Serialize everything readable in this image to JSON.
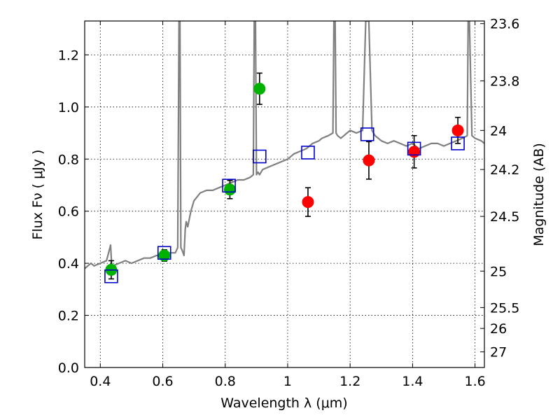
{
  "chart_data": {
    "type": "scatter",
    "title": "",
    "xlabel": "Wavelength  λ (μm)",
    "ylabel": "Flux  Fν  ( μJy )",
    "ylabel2": "Magnitude (AB)",
    "xlim": [
      0.35,
      1.63
    ],
    "ylim": [
      0.0,
      1.33
    ],
    "grid": true,
    "x_ticks": [
      0.4,
      0.6,
      0.8,
      1.0,
      1.2,
      1.4,
      1.6
    ],
    "x_tick_labels": [
      "0.4",
      "0.6",
      "0.8",
      "1",
      "1.2",
      "1.4",
      "1.6"
    ],
    "y_ticks": [
      0.0,
      0.2,
      0.4,
      0.6,
      0.8,
      1.0,
      1.2
    ],
    "y_tick_labels": [
      "0.0",
      "0.2",
      "0.4",
      "0.6",
      "0.8",
      "1.0",
      "1.2"
    ],
    "y2_ticks": [
      {
        "label": "23.6",
        "flux": 1.32
      },
      {
        "label": "23.8",
        "flux": 1.1
      },
      {
        "label": "24",
        "flux": 0.91
      },
      {
        "label": "24.2",
        "flux": 0.76
      },
      {
        "label": "24.5",
        "flux": 0.58
      },
      {
        "label": "25",
        "flux": 0.37
      },
      {
        "label": "25.5",
        "flux": 0.23
      },
      {
        "label": "26",
        "flux": 0.15
      },
      {
        "label": "27",
        "flux": 0.06
      }
    ],
    "colors": {
      "green": "#00b200",
      "red": "#ff0000",
      "blue": "#0000cc",
      "spectrum": "#808080"
    },
    "series": [
      {
        "name": "green points",
        "marker": "circle",
        "color": "#00b200",
        "points": [
          {
            "x": 0.435,
            "y": 0.375,
            "err": 0.035
          },
          {
            "x": 0.605,
            "y": 0.43,
            "err": 0.022
          },
          {
            "x": 0.815,
            "y": 0.683,
            "err": 0.035
          },
          {
            "x": 0.91,
            "y": 1.07,
            "err": 0.06
          }
        ]
      },
      {
        "name": "red points",
        "marker": "circle",
        "color": "#ff0000",
        "points": [
          {
            "x": 1.065,
            "y": 0.635,
            "err": 0.055
          },
          {
            "x": 1.26,
            "y": 0.795,
            "err": 0.072
          },
          {
            "x": 1.405,
            "y": 0.828,
            "err": 0.062
          },
          {
            "x": 1.545,
            "y": 0.91,
            "err": 0.05
          }
        ]
      },
      {
        "name": "model photometry",
        "marker": "square",
        "color": "#0000cc",
        "points": [
          {
            "x": 0.435,
            "y": 0.35
          },
          {
            "x": 0.605,
            "y": 0.44
          },
          {
            "x": 0.812,
            "y": 0.698
          },
          {
            "x": 0.91,
            "y": 0.81
          },
          {
            "x": 1.065,
            "y": 0.825
          },
          {
            "x": 1.255,
            "y": 0.895
          },
          {
            "x": 1.405,
            "y": 0.84
          },
          {
            "x": 1.545,
            "y": 0.86
          }
        ]
      }
    ],
    "spectrum": {
      "name": "model spectrum",
      "color": "#808080",
      "x": [
        0.35,
        0.36,
        0.37,
        0.38,
        0.4,
        0.42,
        0.433,
        0.436,
        0.44,
        0.46,
        0.48,
        0.5,
        0.52,
        0.54,
        0.56,
        0.58,
        0.6,
        0.62,
        0.64,
        0.648,
        0.652,
        0.655,
        0.658,
        0.662,
        0.665,
        0.668,
        0.672,
        0.675,
        0.68,
        0.69,
        0.7,
        0.72,
        0.74,
        0.76,
        0.78,
        0.8,
        0.82,
        0.84,
        0.86,
        0.88,
        0.89,
        0.893,
        0.897,
        0.9,
        0.905,
        0.91,
        0.92,
        0.94,
        0.96,
        0.98,
        1.0,
        1.02,
        1.04,
        1.06,
        1.08,
        1.1,
        1.11,
        1.13,
        1.145,
        1.148,
        1.152,
        1.155,
        1.16,
        1.17,
        1.18,
        1.19,
        1.2,
        1.22,
        1.24,
        1.25,
        1.26,
        1.27,
        1.28,
        1.29,
        1.3,
        1.32,
        1.34,
        1.36,
        1.38,
        1.4,
        1.42,
        1.44,
        1.46,
        1.48,
        1.5,
        1.52,
        1.54,
        1.56,
        1.575,
        1.578,
        1.582,
        1.59,
        1.6,
        1.62,
        1.63
      ],
      "y": [
        0.38,
        0.39,
        0.4,
        0.39,
        0.4,
        0.41,
        0.47,
        0.4,
        0.39,
        0.4,
        0.41,
        0.4,
        0.41,
        0.42,
        0.42,
        0.43,
        0.43,
        0.44,
        0.44,
        0.46,
        1.33,
        1.33,
        0.46,
        0.45,
        0.44,
        0.43,
        0.53,
        0.56,
        0.54,
        0.6,
        0.64,
        0.67,
        0.68,
        0.68,
        0.69,
        0.7,
        0.71,
        0.72,
        0.72,
        0.73,
        0.74,
        1.33,
        1.33,
        0.74,
        0.75,
        0.74,
        0.76,
        0.77,
        0.78,
        0.79,
        0.8,
        0.82,
        0.83,
        0.84,
        0.86,
        0.87,
        0.88,
        0.89,
        0.9,
        1.33,
        1.33,
        0.9,
        0.89,
        0.88,
        0.89,
        0.9,
        0.91,
        0.9,
        0.91,
        1.33,
        1.33,
        0.91,
        0.89,
        0.88,
        0.87,
        0.86,
        0.87,
        0.86,
        0.85,
        0.86,
        0.84,
        0.85,
        0.86,
        0.86,
        0.85,
        0.86,
        0.87,
        0.88,
        0.89,
        1.33,
        1.33,
        0.89,
        0.88,
        0.87,
        0.86
      ]
    }
  }
}
